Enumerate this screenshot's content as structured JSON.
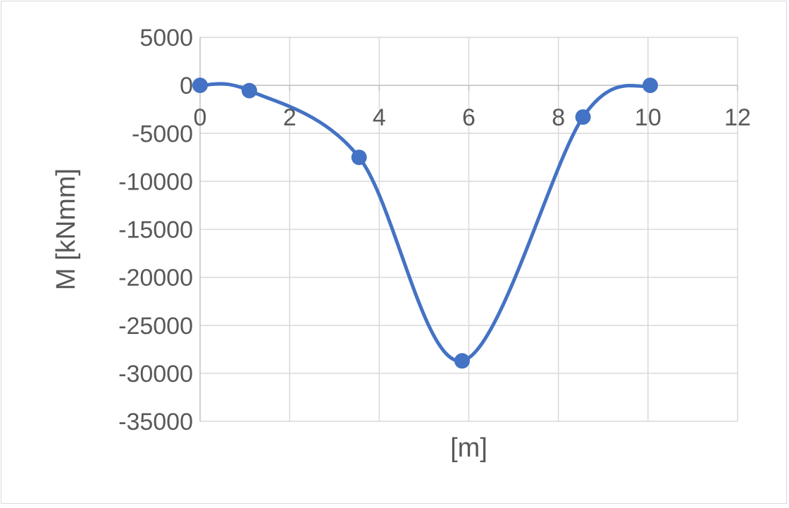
{
  "chart_data": {
    "type": "scatter",
    "title": "",
    "xlabel": "[m]",
    "ylabel": "M [kNmm]",
    "xlim": [
      0,
      12
    ],
    "ylim": [
      -35000,
      5000
    ],
    "x_ticks": [
      "0",
      "2",
      "4",
      "6",
      "8",
      "10",
      "12"
    ],
    "y_ticks": [
      "5000",
      "0",
      "-5000",
      "-10000",
      "-15000",
      "-20000",
      "-25000",
      "-30000",
      "-35000"
    ],
    "grid": true,
    "legend": "none",
    "smooth_line": true,
    "series": [
      {
        "color": "#4472C4",
        "points": [
          {
            "x": 0,
            "y": 0
          },
          {
            "x": 1.1,
            "y": -550
          },
          {
            "x": 3.55,
            "y": -7500
          },
          {
            "x": 5.85,
            "y": -28700
          },
          {
            "x": 8.55,
            "y": -3300
          },
          {
            "x": 10.05,
            "y": 0
          }
        ]
      }
    ]
  }
}
